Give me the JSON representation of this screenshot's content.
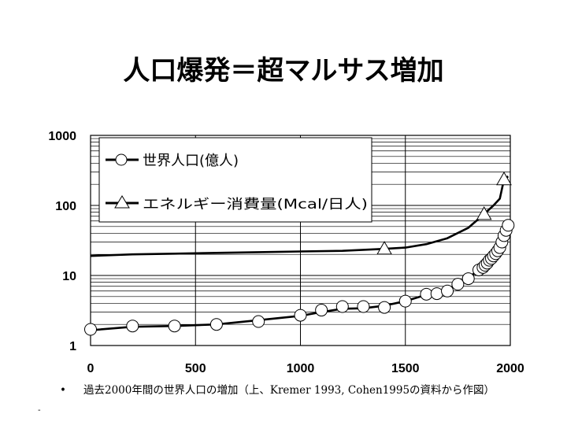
{
  "slide": {
    "title": "人口爆発＝超マルサス増加",
    "caption_bullet": "•",
    "caption": "過去2000年間の世界人口の増加（上、Kremer 1993, Cohen1995の資料から作図）",
    "footmark": "-"
  },
  "chart_data": {
    "type": "line",
    "title": "",
    "xlabel": "",
    "ylabel": "",
    "xlim": [
      0,
      2000
    ],
    "ylim": [
      1,
      1000
    ],
    "y_scale": "log",
    "grid": true,
    "x_ticks": [
      0,
      500,
      1000,
      1500,
      2000
    ],
    "x_tick_labels": [
      "0",
      "500",
      "1000",
      "1500",
      "2000"
    ],
    "y_ticks": [
      1000,
      100,
      10,
      1
    ],
    "y_tick_labels": [
      "1000",
      "100",
      "10",
      "1"
    ],
    "legend_position": "top-left",
    "series": [
      {
        "name": "世界人口(億人)",
        "marker": "circle",
        "color": "#000000",
        "x": [
          0,
          200,
          400,
          600,
          800,
          1000,
          1100,
          1200,
          1300,
          1400,
          1500,
          1600,
          1650,
          1700,
          1750,
          1800,
          1850,
          1870,
          1880,
          1890,
          1900,
          1910,
          1920,
          1930,
          1940,
          1950,
          1960,
          1970,
          1980,
          1990
        ],
        "y": [
          1.7,
          1.9,
          1.9,
          2.0,
          2.2,
          2.7,
          3.2,
          3.6,
          3.6,
          3.5,
          4.3,
          5.4,
          5.5,
          6.0,
          7.5,
          9.0,
          12.0,
          13.0,
          14.0,
          15.0,
          16.5,
          17.5,
          19.0,
          20.5,
          22.5,
          25.0,
          30.0,
          37.0,
          44.0,
          52.0
        ],
        "line_x": [
          0,
          200,
          400,
          600,
          800,
          1000,
          1100,
          1200,
          1300,
          1400,
          1500,
          1600,
          1650,
          1700,
          1750,
          1800,
          1850,
          1870,
          1880,
          1890,
          1900,
          1910,
          1920,
          1930,
          1940,
          1950,
          1960,
          1970,
          1980,
          1990,
          2000
        ],
        "line_y": [
          1.65,
          1.85,
          1.9,
          2.0,
          2.3,
          2.65,
          3.0,
          3.35,
          3.4,
          3.7,
          4.3,
          5.3,
          5.6,
          6.2,
          7.4,
          9.1,
          12.2,
          13.2,
          14.0,
          15.0,
          16.5,
          17.8,
          19.3,
          21.0,
          23.0,
          25.5,
          30.0,
          36.5,
          44.0,
          52.0,
          60.0
        ]
      },
      {
        "name": "エネルギー消費量(Mcal/日人)",
        "marker": "triangle",
        "color": "#000000",
        "x": [
          1400,
          1875,
          1970
        ],
        "y": [
          24,
          75,
          235
        ],
        "line_x": [
          0,
          200,
          400,
          600,
          800,
          1000,
          1200,
          1400,
          1500,
          1600,
          1700,
          1800,
          1875,
          1920,
          1950,
          1970,
          1990
        ],
        "line_y": [
          19,
          20,
          20.5,
          21,
          21.5,
          22,
          22.5,
          24,
          25,
          28,
          34,
          48,
          75,
          100,
          125,
          235,
          260
        ]
      }
    ]
  }
}
